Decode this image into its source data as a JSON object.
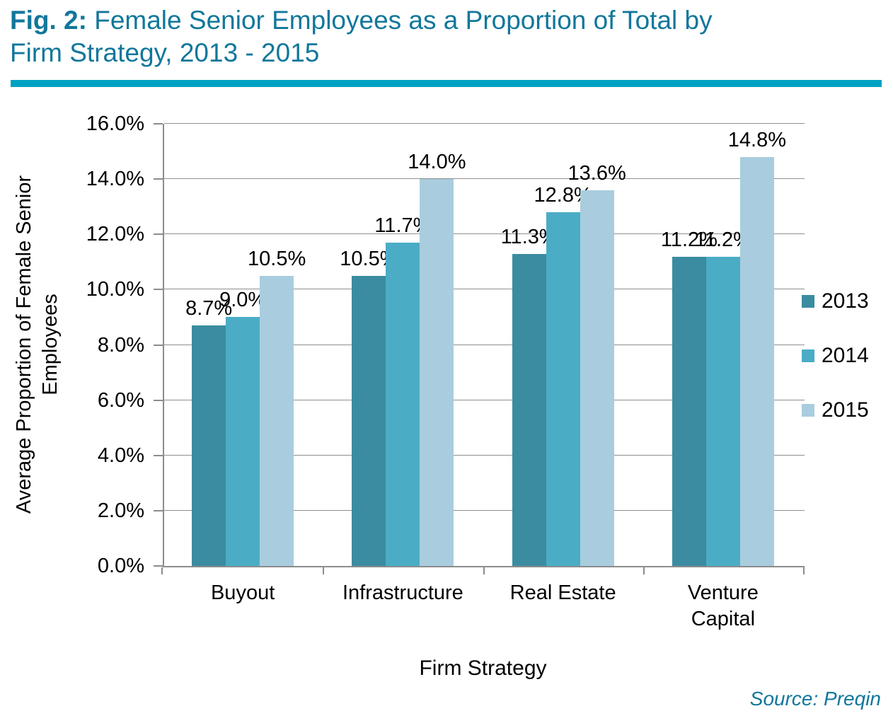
{
  "header": {
    "fig_label": "Fig. 2:",
    "title_line1": "Female Senior Employees as a Proportion of Total by",
    "title_line2": "Firm Strategy, 2013 - 2015"
  },
  "chart_data": {
    "type": "bar",
    "title": "Fig. 2: Female Senior Employees as a Proportion of Total by Firm Strategy, 2013 - 2015",
    "categories": [
      "Buyout",
      "Infrastructure",
      "Real Estate",
      "Venture Capital"
    ],
    "series": [
      {
        "name": "2013",
        "color": "#3B8CA1",
        "values": [
          8.7,
          10.5,
          11.3,
          11.2
        ]
      },
      {
        "name": "2014",
        "color": "#4BACC6",
        "values": [
          9.0,
          11.7,
          12.8,
          11.2
        ]
      },
      {
        "name": "2015",
        "color": "#A9CDDE",
        "values": [
          10.5,
          14.0,
          13.6,
          14.8
        ]
      }
    ],
    "data_labels": [
      [
        "8.7%",
        "10.5%",
        "11.3%",
        "11.2%"
      ],
      [
        "9.0%",
        "11.7%",
        "12.8%",
        "11.2%"
      ],
      [
        "10.5%",
        "14.0%",
        "13.6%",
        "14.8%"
      ]
    ],
    "xlabel": "Firm Strategy",
    "ylabel": "Average Proportion of Female Senior Employees",
    "ylim": [
      0,
      16
    ],
    "ytick_labels": [
      "0.0%",
      "2.0%",
      "4.0%",
      "6.0%",
      "8.0%",
      "10.0%",
      "12.0%",
      "14.0%",
      "16.0%"
    ],
    "grid": true,
    "legend_position": "right",
    "data_labels_shown": true
  },
  "footer": {
    "source": "Source: Preqin"
  },
  "theme": {
    "title_color": "#12779B",
    "rule_color": "#00A2C4",
    "axis_color": "#8C8C8C",
    "grid_color": "#8F8F8F",
    "text_color": "#000000"
  }
}
